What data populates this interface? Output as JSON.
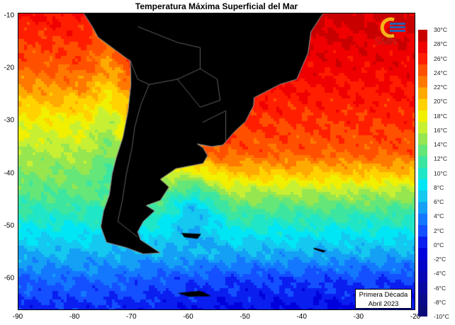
{
  "title": "Temperatura Máxima Superficial del Mar",
  "logo": {
    "text": "SMN"
  },
  "period": {
    "line1": "Primera Década",
    "line2": "Abril 2023"
  },
  "map": {
    "lon_range": [
      -90,
      -20
    ],
    "lat_range": [
      -66,
      -9.5
    ],
    "x_ticks": [
      "-90",
      "-80",
      "-70",
      "-60",
      "-50",
      "-40",
      "-30",
      "-20"
    ],
    "x_tick_values": [
      -90,
      -80,
      -70,
      -60,
      -50,
      -40,
      -30,
      -20
    ],
    "y_ticks": [
      "-10",
      "-20",
      "-30",
      "-40",
      "-50",
      "-60"
    ],
    "y_tick_values": [
      -10,
      -20,
      -30,
      -40,
      -50,
      -60
    ],
    "land_color": "#000000"
  },
  "colorbar": {
    "labels": [
      "30°C",
      "28°C",
      "26°C",
      "24°C",
      "22°C",
      "20°C",
      "18°C",
      "16°C",
      "14°C",
      "12°C",
      "10°C",
      "8°C",
      "6°C",
      "4°C",
      "2°C",
      "0°C",
      "-2°C",
      "-4°C",
      "-6°C",
      "-8°C",
      "-10°C"
    ],
    "min": -10,
    "max": 30,
    "colors": [
      "#0a0a78",
      "#0a0a8c",
      "#0808a0",
      "#0606b4",
      "#0404c8",
      "#0000dc",
      "#0a1ef0",
      "#1450ff",
      "#1478ff",
      "#14a0f5",
      "#14c8f0",
      "#00e6f5",
      "#20e6c8",
      "#3ce6a0",
      "#64e678",
      "#96e650",
      "#c8f032",
      "#f0f000",
      "#ffd200",
      "#ffaa00",
      "#ff7800",
      "#ff5000",
      "#ff1e00",
      "#f00000",
      "#c80000"
    ]
  }
}
